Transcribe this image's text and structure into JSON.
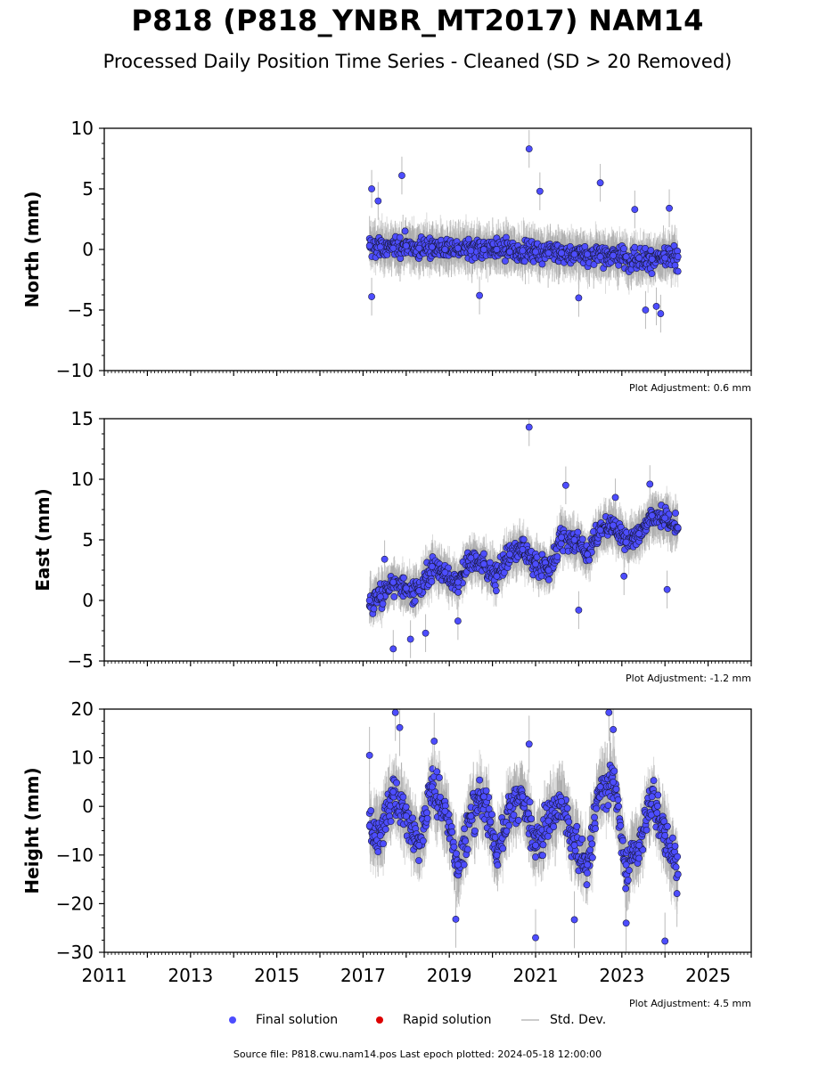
{
  "header": {
    "title": "P818 (P818_YNBR_MT2017) NAM14",
    "subtitle": "Processed Daily Position Time Series - Cleaned (SD > 20 Removed)"
  },
  "legend": {
    "final": "Final solution",
    "rapid": "Rapid solution",
    "std": "Std. Dev."
  },
  "footer": {
    "source": "Source file: P818.cwu.nam14.pos  Last epoch plotted: 2024-05-18 12:00:00"
  },
  "colors": {
    "final": "#4d4dff",
    "rapid": "#dd0000",
    "std": "#bbbbbb"
  },
  "chart_data": [
    {
      "type": "scatter",
      "panel": "north",
      "ylabel": "North (mm)",
      "ylim": [
        -10,
        10
      ],
      "yticks": [
        -10,
        -5,
        0,
        5,
        10
      ],
      "xlim": [
        2011,
        2026
      ],
      "xticks": [
        2011,
        2013,
        2015,
        2017,
        2019,
        2021,
        2023,
        2025
      ],
      "adjustment": "Plot Adjustment: 0.6 mm",
      "x": [
        2017.15,
        2017.4,
        2017.7,
        2018.0,
        2018.3,
        2018.6,
        2018.9,
        2019.2,
        2019.5,
        2019.8,
        2020.1,
        2020.4,
        2020.7,
        2021.0,
        2021.3,
        2021.6,
        2021.9,
        2022.2,
        2022.5,
        2022.8,
        2023.1,
        2023.4,
        2023.7,
        2024.0,
        2024.3
      ],
      "values": [
        0.3,
        0.2,
        0.1,
        0.3,
        0.1,
        0.2,
        0.0,
        0.1,
        -0.1,
        0.0,
        0.0,
        -0.2,
        -0.1,
        -0.2,
        -0.3,
        -0.3,
        -0.4,
        -0.4,
        -0.6,
        -0.5,
        -0.6,
        -0.7,
        -0.8,
        -0.7,
        -0.6
      ],
      "outliers": [
        {
          "x": 2017.2,
          "y": 5.0
        },
        {
          "x": 2017.35,
          "y": 4.0
        },
        {
          "x": 2017.9,
          "y": 6.1
        },
        {
          "x": 2017.2,
          "y": -3.9
        },
        {
          "x": 2020.85,
          "y": 8.3
        },
        {
          "x": 2021.1,
          "y": 4.8
        },
        {
          "x": 2022.5,
          "y": 5.5
        },
        {
          "x": 2023.8,
          "y": -4.7
        },
        {
          "x": 2023.9,
          "y": -5.3
        },
        {
          "x": 2023.55,
          "y": -5.0
        },
        {
          "x": 2019.7,
          "y": -3.8
        },
        {
          "x": 2024.1,
          "y": 3.4
        },
        {
          "x": 2023.3,
          "y": 3.3
        },
        {
          "x": 2022.0,
          "y": -4.0
        }
      ]
    },
    {
      "type": "scatter",
      "panel": "east",
      "ylabel": "East (mm)",
      "ylim": [
        -5,
        15
      ],
      "yticks": [
        -5,
        0,
        5,
        10,
        15
      ],
      "xlim": [
        2011,
        2026
      ],
      "xticks": [
        2011,
        2013,
        2015,
        2017,
        2019,
        2021,
        2023,
        2025
      ],
      "adjustment": "Plot Adjustment: -1.2 mm",
      "x": [
        2017.15,
        2017.4,
        2017.7,
        2018.0,
        2018.3,
        2018.6,
        2018.9,
        2019.2,
        2019.5,
        2019.8,
        2020.1,
        2020.4,
        2020.7,
        2021.0,
        2021.3,
        2021.6,
        2021.9,
        2022.2,
        2022.5,
        2022.8,
        2023.1,
        2023.4,
        2023.7,
        2024.0,
        2024.3
      ],
      "values": [
        0.0,
        0.3,
        1.5,
        1.0,
        0.8,
        2.8,
        2.3,
        1.5,
        3.5,
        3.0,
        2.0,
        3.8,
        4.2,
        3.0,
        2.5,
        5.2,
        5.0,
        3.8,
        5.8,
        6.2,
        4.8,
        5.5,
        7.0,
        6.8,
        6.0
      ],
      "outliers": [
        {
          "x": 2020.85,
          "y": 14.3
        },
        {
          "x": 2021.7,
          "y": 9.5
        },
        {
          "x": 2023.65,
          "y": 9.6
        },
        {
          "x": 2017.7,
          "y": -4.0
        },
        {
          "x": 2018.1,
          "y": -3.2
        },
        {
          "x": 2018.45,
          "y": -2.7
        },
        {
          "x": 2019.2,
          "y": -1.7
        },
        {
          "x": 2022.0,
          "y": -0.8
        },
        {
          "x": 2024.05,
          "y": 0.9
        },
        {
          "x": 2022.85,
          "y": 8.5
        },
        {
          "x": 2023.05,
          "y": 2.0
        },
        {
          "x": 2017.5,
          "y": 3.4
        }
      ]
    },
    {
      "type": "scatter",
      "panel": "height",
      "ylabel": "Height (mm)",
      "ylim": [
        -30,
        20
      ],
      "yticks": [
        -30,
        -20,
        -10,
        0,
        10,
        20
      ],
      "xlim": [
        2011,
        2026
      ],
      "xticks": [
        2011,
        2013,
        2015,
        2017,
        2019,
        2021,
        2023,
        2025
      ],
      "adjustment": "Plot Adjustment: 4.5 mm",
      "x": [
        2017.15,
        2017.4,
        2017.7,
        2018.0,
        2018.3,
        2018.6,
        2018.9,
        2019.2,
        2019.5,
        2019.8,
        2020.1,
        2020.4,
        2020.7,
        2021.0,
        2021.3,
        2021.6,
        2021.9,
        2022.2,
        2022.5,
        2022.8,
        2023.1,
        2023.4,
        2023.7,
        2024.0,
        2024.3
      ],
      "values": [
        -4,
        -6,
        3,
        -2,
        -8,
        4,
        -1,
        -12,
        -2,
        2,
        -10,
        0,
        2,
        -8,
        -3,
        1,
        -8,
        -12,
        4,
        5,
        -12,
        -8,
        2,
        -6,
        -14
      ],
      "outliers": [
        {
          "x": 2017.75,
          "y": 19.3
        },
        {
          "x": 2022.7,
          "y": 19.3
        },
        {
          "x": 2017.85,
          "y": 16.2
        },
        {
          "x": 2017.15,
          "y": 10.5
        },
        {
          "x": 2021.0,
          "y": -27.0
        },
        {
          "x": 2024.0,
          "y": -27.7
        },
        {
          "x": 2023.1,
          "y": -24.0
        },
        {
          "x": 2019.15,
          "y": -23.2
        },
        {
          "x": 2021.9,
          "y": -23.3
        },
        {
          "x": 2022.8,
          "y": 15.8
        },
        {
          "x": 2020.85,
          "y": 12.8
        },
        {
          "x": 2018.65,
          "y": 13.4
        }
      ]
    }
  ]
}
